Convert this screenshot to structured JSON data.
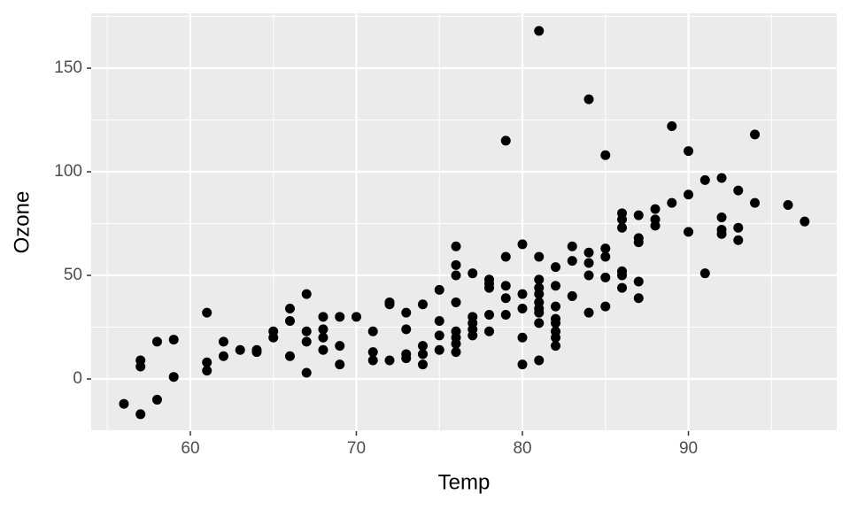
{
  "chart_data": {
    "type": "scatter",
    "x_label": "Temp",
    "y_label": "Ozone",
    "color": "#000000",
    "grid": true,
    "xlim": [
      54.03,
      98.93
    ],
    "ylim": [
      -25.2,
      176.5
    ],
    "xticks": [
      60,
      70,
      80,
      90
    ],
    "yticks": [
      0,
      50,
      100,
      150
    ],
    "x": [
      56,
      57,
      57,
      57,
      58,
      58,
      59,
      59,
      61,
      61,
      61,
      62,
      62,
      63,
      64,
      64,
      65,
      65,
      66,
      66,
      66,
      67,
      67,
      67,
      67,
      68,
      68,
      68,
      68,
      69,
      69,
      69,
      70,
      71,
      71,
      71,
      72,
      72,
      72,
      73,
      73,
      73,
      73,
      74,
      74,
      74,
      74,
      75,
      75,
      75,
      75,
      76,
      76,
      76,
      76,
      76,
      76,
      76,
      76,
      77,
      77,
      77,
      77,
      77,
      78,
      78,
      78,
      78,
      78,
      79,
      79,
      79,
      79,
      79,
      80,
      80,
      80,
      80,
      80,
      81,
      81,
      81,
      81,
      81,
      81,
      81,
      81,
      81,
      81,
      82,
      82,
      82,
      82,
      82,
      82,
      82,
      82,
      83,
      83,
      83,
      84,
      84,
      84,
      84,
      84,
      85,
      85,
      85,
      85,
      85,
      86,
      86,
      86,
      86,
      86,
      86,
      87,
      87,
      87,
      87,
      87,
      88,
      88,
      88,
      89,
      89,
      90,
      90,
      90,
      91,
      91,
      92,
      92,
      92,
      92,
      93,
      93,
      93,
      94,
      94,
      96,
      97
    ],
    "values": [
      -12,
      -17,
      6,
      9,
      18,
      -10,
      19,
      1,
      32,
      8,
      4,
      18,
      11,
      14,
      14,
      13,
      23,
      20,
      34,
      28,
      11,
      41,
      23,
      18,
      3,
      30,
      24,
      20,
      14,
      30,
      16,
      7,
      30,
      23,
      13,
      9,
      37,
      36,
      9,
      32,
      24,
      12,
      10,
      36,
      16,
      12,
      7,
      43,
      28,
      21,
      14,
      64,
      55,
      50,
      37,
      23,
      20,
      17,
      13,
      51,
      30,
      27,
      24,
      21,
      48,
      46,
      44,
      31,
      23,
      115,
      59,
      45,
      39,
      31,
      65,
      41,
      34,
      20,
      7,
      168,
      59,
      48,
      44,
      41,
      37,
      34,
      32,
      27,
      9,
      54,
      45,
      35,
      29,
      27,
      23,
      20,
      16,
      64,
      57,
      40,
      135,
      61,
      56,
      50,
      32,
      108,
      63,
      59,
      49,
      35,
      80,
      77,
      73,
      52,
      50,
      44,
      79,
      68,
      66,
      47,
      39,
      82,
      77,
      74,
      122,
      85,
      110,
      89,
      71,
      96,
      51,
      97,
      78,
      72,
      70,
      91,
      73,
      67,
      118,
      85,
      84,
      76
    ]
  }
}
